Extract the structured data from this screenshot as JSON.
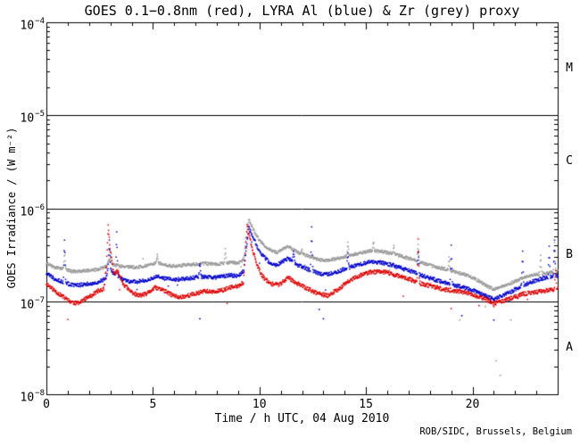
{
  "title_note": "solar x-ray flux daily plot",
  "credit": "ROB/SIDC, Brussels, Belgium",
  "colors": {
    "red": "#dd0000",
    "blue": "#0000cc",
    "grey": "#999999",
    "axis": "#000000",
    "background": "#ffffff"
  },
  "chart_data": {
    "type": "scatter",
    "title": "GOES 0.1−0.8nm (red), LYRA Al (blue) & Zr (grey) proxy",
    "xlabel": "Time / h UTC, 04 Aug 2010",
    "ylabel": "GOES Irradiance / (W m⁻²)",
    "xlim": [
      0,
      24
    ],
    "ylim_exp": [
      -8,
      -4
    ],
    "yscale": "log",
    "grid": false,
    "legend_position": "in-title",
    "xticks": {
      "major": [
        0,
        5,
        10,
        15,
        20
      ],
      "labels": [
        "0",
        "5",
        "10",
        "15",
        "20"
      ],
      "minor_step": 1
    },
    "yticks": [
      {
        "exp_value": -4,
        "base": "10",
        "exp": "−4"
      },
      {
        "exp_value": -5,
        "base": "10",
        "exp": "−5"
      },
      {
        "exp_value": -6,
        "base": "10",
        "exp": "−6"
      },
      {
        "exp_value": -7,
        "base": "10",
        "exp": "−7"
      },
      {
        "exp_value": -8,
        "base": "10",
        "exp": "−8"
      }
    ],
    "hlines_exp": [
      -5,
      -6,
      -7
    ],
    "class_bands": [
      {
        "label": "M",
        "exps": [
          -5,
          -4
        ]
      },
      {
        "label": "C",
        "exps": [
          -6,
          -5
        ]
      },
      {
        "label": "B",
        "exps": [
          -7,
          -6
        ]
      },
      {
        "label": "A",
        "exps": [
          -8,
          -7
        ]
      }
    ],
    "series": [
      {
        "name": "LYRA Zr proxy",
        "color_key": "grey",
        "noise_dex": 0.016,
        "seed": 77,
        "anchors": [
          [
            0,
            2.55e-07
          ],
          [
            0.4,
            2.3e-07
          ],
          [
            0.8,
            2.25e-07
          ],
          [
            1.2,
            2.1e-07
          ],
          [
            1.6,
            2.1e-07
          ],
          [
            2.0,
            2.15e-07
          ],
          [
            2.4,
            2.2e-07
          ],
          [
            2.8,
            2.35e-07
          ],
          [
            2.95,
            2.8e-07
          ],
          [
            3.1,
            2.5e-07
          ],
          [
            3.4,
            2.4e-07
          ],
          [
            3.8,
            2.35e-07
          ],
          [
            4.2,
            2.3e-07
          ],
          [
            4.6,
            2.4e-07
          ],
          [
            5.0,
            2.5e-07
          ],
          [
            5.2,
            2.6e-07
          ],
          [
            5.6,
            2.45e-07
          ],
          [
            6.0,
            2.4e-07
          ],
          [
            6.5,
            2.45e-07
          ],
          [
            7.0,
            2.5e-07
          ],
          [
            7.5,
            2.55e-07
          ],
          [
            8.0,
            2.5e-07
          ],
          [
            8.5,
            2.6e-07
          ],
          [
            9.0,
            2.6e-07
          ],
          [
            9.25,
            2.8e-07
          ],
          [
            9.5,
            7.7e-07
          ],
          [
            9.7,
            6e-07
          ],
          [
            10.0,
            4.5e-07
          ],
          [
            10.4,
            3.7e-07
          ],
          [
            10.8,
            3.35e-07
          ],
          [
            11.35,
            3.9e-07
          ],
          [
            11.8,
            3.35e-07
          ],
          [
            12.3,
            3.05e-07
          ],
          [
            12.8,
            2.8e-07
          ],
          [
            13.2,
            2.75e-07
          ],
          [
            13.7,
            2.9e-07
          ],
          [
            14.2,
            3.1e-07
          ],
          [
            14.7,
            3.3e-07
          ],
          [
            15.2,
            3.5e-07
          ],
          [
            15.7,
            3.45e-07
          ],
          [
            16.1,
            3.3e-07
          ],
          [
            16.6,
            3.1e-07
          ],
          [
            17.1,
            2.85e-07
          ],
          [
            17.6,
            2.6e-07
          ],
          [
            18.1,
            2.4e-07
          ],
          [
            18.6,
            2.25e-07
          ],
          [
            19.1,
            2.1e-07
          ],
          [
            19.6,
            1.95e-07
          ],
          [
            20.1,
            1.75e-07
          ],
          [
            20.6,
            1.5e-07
          ],
          [
            21.0,
            1.35e-07
          ],
          [
            21.4,
            1.45e-07
          ],
          [
            21.9,
            1.6e-07
          ],
          [
            22.4,
            1.8e-07
          ],
          [
            22.9,
            1.95e-07
          ],
          [
            23.4,
            2e-07
          ],
          [
            24,
            2.1e-07
          ]
        ],
        "spikes": [
          [
            0.85,
            3.5e-07
          ],
          [
            3.05,
            3.3e-07
          ],
          [
            5.2,
            3.1e-07
          ],
          [
            8.4,
            3.6e-07
          ],
          [
            12.0,
            3.5e-07
          ],
          [
            14.15,
            4.4e-07
          ],
          [
            15.35,
            4.4e-07
          ],
          [
            16.3,
            3.9e-07
          ],
          [
            17.45,
            4.1e-07
          ],
          [
            18.9,
            2.9e-07
          ],
          [
            23.2,
            3.1e-07
          ],
          [
            23.85,
            4.2e-07
          ]
        ]
      },
      {
        "name": "LYRA Al proxy",
        "color_key": "blue",
        "noise_dex": 0.02,
        "seed": 33,
        "anchors": [
          [
            0,
            2e-07
          ],
          [
            0.4,
            1.75e-07
          ],
          [
            0.8,
            1.6e-07
          ],
          [
            1.2,
            1.5e-07
          ],
          [
            1.6,
            1.5e-07
          ],
          [
            2.0,
            1.55e-07
          ],
          [
            2.4,
            1.6e-07
          ],
          [
            2.8,
            1.75e-07
          ],
          [
            2.95,
            2.6e-07
          ],
          [
            3.1,
            2e-07
          ],
          [
            3.3,
            1.9e-07
          ],
          [
            3.6,
            1.7e-07
          ],
          [
            4.0,
            1.6e-07
          ],
          [
            4.4,
            1.65e-07
          ],
          [
            4.8,
            1.7e-07
          ],
          [
            5.2,
            1.85e-07
          ],
          [
            5.6,
            1.75e-07
          ],
          [
            6.0,
            1.7e-07
          ],
          [
            6.5,
            1.75e-07
          ],
          [
            7.0,
            1.8e-07
          ],
          [
            7.5,
            1.85e-07
          ],
          [
            8.0,
            1.8e-07
          ],
          [
            8.5,
            1.9e-07
          ],
          [
            9.0,
            1.9e-07
          ],
          [
            9.25,
            2.1e-07
          ],
          [
            9.5,
            6.2e-07
          ],
          [
            9.7,
            4.9e-07
          ],
          [
            10.0,
            3.4e-07
          ],
          [
            10.4,
            2.7e-07
          ],
          [
            10.8,
            2.45e-07
          ],
          [
            11.35,
            2.9e-07
          ],
          [
            11.8,
            2.45e-07
          ],
          [
            12.3,
            2.2e-07
          ],
          [
            12.8,
            2e-07
          ],
          [
            13.2,
            1.95e-07
          ],
          [
            13.7,
            2.1e-07
          ],
          [
            14.2,
            2.3e-07
          ],
          [
            14.7,
            2.5e-07
          ],
          [
            15.2,
            2.65e-07
          ],
          [
            15.7,
            2.6e-07
          ],
          [
            16.1,
            2.5e-07
          ],
          [
            16.6,
            2.3e-07
          ],
          [
            17.1,
            2.1e-07
          ],
          [
            17.6,
            1.9e-07
          ],
          [
            18.1,
            1.75e-07
          ],
          [
            18.6,
            1.6e-07
          ],
          [
            19.1,
            1.5e-07
          ],
          [
            19.6,
            1.4e-07
          ],
          [
            20.1,
            1.3e-07
          ],
          [
            20.6,
            1.15e-07
          ],
          [
            21.0,
            1.05e-07
          ],
          [
            21.4,
            1.15e-07
          ],
          [
            21.9,
            1.3e-07
          ],
          [
            22.4,
            1.5e-07
          ],
          [
            22.9,
            1.65e-07
          ],
          [
            23.4,
            1.8e-07
          ],
          [
            24,
            1.9e-07
          ]
        ],
        "spikes": [
          [
            0.85,
            4.7e-07
          ],
          [
            2.95,
            4.4e-07
          ],
          [
            3.3,
            5.4e-07
          ],
          [
            7.2,
            2.6e-07
          ],
          [
            11.6,
            3.6e-07
          ],
          [
            12.45,
            6.3e-07
          ],
          [
            14.15,
            3.3e-07
          ],
          [
            17.45,
            3.4e-07
          ],
          [
            19.0,
            3.9e-07
          ],
          [
            22.35,
            3.5e-07
          ],
          [
            23.6,
            3.8e-07
          ],
          [
            23.85,
            4.4e-07
          ]
        ]
      },
      {
        "name": "GOES 0.1-0.8nm",
        "color_key": "red",
        "noise_dex": 0.022,
        "seed": 11,
        "anchors": [
          [
            0,
            1.55e-07
          ],
          [
            0.3,
            1.35e-07
          ],
          [
            0.7,
            1.15e-07
          ],
          [
            1.1,
            1e-07
          ],
          [
            1.4,
            9.5e-08
          ],
          [
            1.8,
            1.05e-07
          ],
          [
            2.1,
            1.15e-07
          ],
          [
            2.45,
            1.3e-07
          ],
          [
            2.7,
            1.35e-07
          ],
          [
            2.82,
            2.5e-07
          ],
          [
            2.9,
            6.5e-07
          ],
          [
            3.0,
            3.4e-07
          ],
          [
            3.15,
            2e-07
          ],
          [
            3.35,
            2.1e-07
          ],
          [
            3.6,
            1.55e-07
          ],
          [
            3.9,
            1.3e-07
          ],
          [
            4.3,
            1.15e-07
          ],
          [
            4.7,
            1.2e-07
          ],
          [
            5.1,
            1.4e-07
          ],
          [
            5.4,
            1.35e-07
          ],
          [
            5.8,
            1.2e-07
          ],
          [
            6.2,
            1.1e-07
          ],
          [
            6.6,
            1.15e-07
          ],
          [
            7.0,
            1.2e-07
          ],
          [
            7.4,
            1.3e-07
          ],
          [
            7.8,
            1.25e-07
          ],
          [
            8.2,
            1.3e-07
          ],
          [
            8.6,
            1.4e-07
          ],
          [
            9.0,
            1.45e-07
          ],
          [
            9.25,
            1.6e-07
          ],
          [
            9.42,
            6.6e-07
          ],
          [
            9.6,
            4.2e-07
          ],
          [
            9.85,
            2.6e-07
          ],
          [
            10.1,
            1.9e-07
          ],
          [
            10.5,
            1.55e-07
          ],
          [
            10.9,
            1.5e-07
          ],
          [
            11.35,
            1.8e-07
          ],
          [
            11.8,
            1.55e-07
          ],
          [
            12.3,
            1.35e-07
          ],
          [
            12.8,
            1.2e-07
          ],
          [
            13.2,
            1.15e-07
          ],
          [
            13.7,
            1.35e-07
          ],
          [
            14.2,
            1.65e-07
          ],
          [
            14.7,
            1.9e-07
          ],
          [
            15.2,
            2.05e-07
          ],
          [
            15.7,
            2.1e-07
          ],
          [
            16.1,
            2e-07
          ],
          [
            16.6,
            1.85e-07
          ],
          [
            17.1,
            1.7e-07
          ],
          [
            17.6,
            1.55e-07
          ],
          [
            18.1,
            1.45e-07
          ],
          [
            18.6,
            1.35e-07
          ],
          [
            19.1,
            1.3e-07
          ],
          [
            19.6,
            1.25e-07
          ],
          [
            20.1,
            1.15e-07
          ],
          [
            20.6,
            1.05e-07
          ],
          [
            21.0,
            9.5e-08
          ],
          [
            21.4,
            1e-07
          ],
          [
            21.9,
            1.1e-07
          ],
          [
            22.4,
            1.2e-07
          ],
          [
            22.9,
            1.25e-07
          ],
          [
            23.4,
            1.3e-07
          ],
          [
            24,
            1.35e-07
          ]
        ],
        "spikes": [
          [
            17.45,
            4.6e-07
          ],
          [
            23.9,
            2.2e-07
          ]
        ]
      }
    ],
    "outliers": [
      {
        "series": "blue",
        "t": 7.2,
        "v": 6.5e-08
      },
      {
        "series": "blue",
        "t": 12.8,
        "v": 8.2e-08
      },
      {
        "series": "blue",
        "t": 13.0,
        "v": 6.5e-08
      },
      {
        "series": "grey",
        "t": 19.4,
        "v": 6.3e-08
      },
      {
        "series": "blue",
        "t": 19.5,
        "v": 7e-08
      },
      {
        "series": "red",
        "t": 20.3,
        "v": 9e-08
      },
      {
        "series": "grey",
        "t": 20.6,
        "v": 8.8e-08
      },
      {
        "series": "red",
        "t": 21.0,
        "v": 8.8e-08
      },
      {
        "series": "blue",
        "t": 21.0,
        "v": 6.3e-08
      },
      {
        "series": "grey",
        "t": 21.8,
        "v": 6.3e-08
      },
      {
        "series": "grey",
        "t": 21.1,
        "v": 2.3e-08
      },
      {
        "series": "grey",
        "t": 21.3,
        "v": 1.6e-08
      }
    ]
  }
}
